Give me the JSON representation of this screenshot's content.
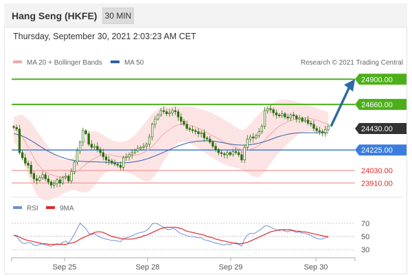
{
  "header": {
    "instrument": "Hang Seng (HKFE)",
    "timeframe": "30 MIN",
    "timestamp": "Thursday, September 30, 2021 2:03:23 AM CET"
  },
  "legend": {
    "ma20_bb": "MA 20 + Bollinger Bands",
    "ma50": "MA 50",
    "copyright": "Research © 2021 Trading Central",
    "rsi": "RSI",
    "rsi_ma": "9MA"
  },
  "colors": {
    "green": "#4caf1a",
    "blue": "#3b7ddd",
    "dark": "#333333",
    "red": "#e0282a",
    "pink": "#f2a7a7",
    "ma50": "#2f5fa8",
    "bb_fill": "#fde4e4",
    "candle": "#2a6e0f",
    "arrow": "#2d6aa3",
    "rsi": "#6c8fd8",
    "rsi_ma": "#e0282a"
  },
  "chart_data": {
    "type": "candlestick",
    "x_tick_labels": [
      "Sep 25",
      "Sep 28",
      "Sep 29",
      "Sep 30"
    ],
    "ylim": [
      23820,
      25000
    ],
    "levels": [
      {
        "value": 24900,
        "label": "24900.00",
        "style": "green-box"
      },
      {
        "value": 24660,
        "label": "24660.00",
        "style": "green-box"
      },
      {
        "value": 24430,
        "label": "24430.00",
        "style": "dark-box"
      },
      {
        "value": 24225,
        "label": "24225.00",
        "style": "blue-box"
      },
      {
        "value": 24030,
        "label": "24030.00",
        "style": "red-text"
      },
      {
        "value": 23910,
        "label": "23910.00",
        "style": "red-text"
      }
    ],
    "close_series": [
      24440,
      24425,
      24200,
      24150,
      24100,
      24080,
      24000,
      23950,
      23935,
      23960,
      23990,
      23950,
      23920,
      23890,
      23905,
      23940,
      23910,
      23960,
      23975,
      23930,
      24020,
      24110,
      24220,
      24300,
      24410,
      24380,
      24280,
      24250,
      24260,
      24230,
      24200,
      24160,
      24130,
      24120,
      24100,
      24090,
      24080,
      24060,
      24150,
      24160,
      24180,
      24200,
      24220,
      24240,
      24250,
      24260,
      24280,
      24350,
      24470,
      24520,
      24560,
      24600,
      24590,
      24570,
      24580,
      24600,
      24590,
      24540,
      24500,
      24470,
      24430,
      24420,
      24410,
      24400,
      24380,
      24390,
      24340,
      24330,
      24300,
      24260,
      24230,
      24200,
      24190,
      24180,
      24200,
      24180,
      24210,
      24200,
      24180,
      24130,
      24250,
      24330,
      24350,
      24340,
      24360,
      24400,
      24450,
      24600,
      24620,
      24610,
      24580,
      24560,
      24550,
      24570,
      24540,
      24530,
      24560,
      24550,
      24520,
      24530,
      24500,
      24510,
      24480,
      24470,
      24430,
      24410,
      24400,
      24390,
      24420,
      24450
    ],
    "ma20": [
      24420,
      24410,
      24390,
      24350,
      24300,
      24250,
      24200,
      24150,
      24100,
      24070,
      24040,
      24020,
      24000,
      23990,
      23980,
      23975,
      23970,
      23970,
      23975,
      23980,
      23990,
      24005,
      24020,
      24040,
      24065,
      24090,
      24110,
      24130,
      24145,
      24160,
      24170,
      24180,
      24180,
      24180,
      24175,
      24170,
      24165,
      24160,
      24160,
      24162,
      24165,
      24170,
      24175,
      24180,
      24190,
      24200,
      24215,
      24235,
      24260,
      24290,
      24320,
      24350,
      24380,
      24400,
      24420,
      24440,
      24455,
      24465,
      24470,
      24470,
      24468,
      24462,
      24455,
      24445,
      24432,
      24420,
      24405,
      24390,
      24375,
      24360,
      24345,
      24330,
      24315,
      24300,
      24288,
      24275,
      24262,
      24250,
      24238,
      24225,
      24222,
      24225,
      24232,
      24240,
      24252,
      24270,
      24292,
      24320,
      24350,
      24378,
      24405,
      24430,
      24450,
      24468,
      24482,
      24494,
      24505,
      24515,
      24522,
      24528,
      24530,
      24530,
      24528,
      24524,
      24518,
      24510,
      24500,
      24490,
      24480,
      24470
    ],
    "ma50": [
      24380,
      24375,
      24368,
      24358,
      24345,
      24330,
      24315,
      24298,
      24280,
      24262,
      24245,
      24228,
      24212,
      24198,
      24185,
      24173,
      24162,
      24152,
      24143,
      24136,
      24130,
      24125,
      24121,
      24118,
      24116,
      24115,
      24114,
      24113,
      24112,
      24111,
      24110,
      24109,
      24108,
      24107,
      24106,
      24105,
      24104,
      24103,
      24103,
      24104,
      24106,
      24109,
      24113,
      24118,
      24124,
      24131,
      24139,
      24148,
      24158,
      24169,
      24180,
      24192,
      24204,
      24216,
      24228,
      24240,
      24252,
      24263,
      24273,
      24282,
      24290,
      24297,
      24302,
      24306,
      24309,
      24311,
      24312,
      24312,
      24311,
      24309,
      24306,
      24302,
      24297,
      24292,
      24287,
      24282,
      24278,
      24275,
      24273,
      24272,
      24272,
      24273,
      24276,
      24280,
      24285,
      24291,
      24298,
      24306,
      24315,
      24325,
      24335,
      24345,
      24354,
      24362,
      24369,
      24375,
      24380,
      24384,
      24387,
      24389,
      24390,
      24390,
      24390,
      24390,
      24390,
      24390,
      24390,
      24390,
      24390,
      24390
    ],
    "bb_width": [
      120,
      140,
      170,
      210,
      240,
      270,
      290,
      300,
      305,
      300,
      290,
      275,
      255,
      235,
      215,
      195,
      180,
      165,
      155,
      150,
      150,
      160,
      185,
      215,
      245,
      270,
      280,
      275,
      260,
      240,
      215,
      190,
      170,
      155,
      145,
      140,
      138,
      140,
      145,
      150,
      160,
      175,
      195,
      220,
      245,
      270,
      290,
      305,
      310,
      305,
      295,
      280,
      260,
      240,
      220,
      200,
      185,
      175,
      170,
      168,
      170,
      175,
      180,
      185,
      190,
      195,
      200,
      205,
      210,
      212,
      214,
      215,
      214,
      212,
      210,
      205,
      200,
      195,
      190,
      190,
      200,
      220,
      245,
      270,
      290,
      300,
      305,
      300,
      290,
      280,
      270,
      260,
      250,
      240,
      225,
      210,
      195,
      180,
      165,
      150,
      140,
      130,
      125,
      120,
      118,
      116,
      115,
      114,
      113,
      112
    ],
    "rsi": {
      "ylim": [
        25,
        75
      ],
      "ticks": [
        70,
        50,
        30
      ],
      "values": [
        52,
        50,
        44,
        40,
        39,
        41,
        40,
        37,
        36,
        38,
        39,
        37,
        36,
        35,
        37,
        39,
        38,
        41,
        43,
        40,
        46,
        53,
        62,
        70,
        66,
        62,
        55,
        53,
        54,
        51,
        49,
        47,
        46,
        45,
        44,
        44,
        43,
        42,
        47,
        48,
        49,
        51,
        53,
        55,
        56,
        57,
        59,
        63,
        69,
        70,
        69,
        66,
        64,
        61,
        60,
        62,
        61,
        57,
        54,
        53,
        51,
        50,
        50,
        49,
        48,
        48,
        45,
        44,
        43,
        41,
        40,
        39,
        38,
        37,
        39,
        37,
        40,
        39,
        38,
        35,
        46,
        52,
        55,
        54,
        56,
        59,
        62,
        66,
        66,
        64,
        62,
        60,
        59,
        60,
        58,
        57,
        59,
        58,
        56,
        57,
        55,
        55,
        53,
        52,
        49,
        47,
        46,
        46,
        48,
        51
      ],
      "ma9": [
        52,
        51,
        49,
        47,
        45,
        44,
        43,
        42,
        41,
        40,
        39,
        39,
        38,
        38,
        38,
        38,
        38,
        38,
        38,
        39,
        40,
        41,
        43,
        46,
        48,
        50,
        52,
        54,
        56,
        57,
        57,
        56,
        54,
        52,
        50,
        49,
        48,
        47,
        46,
        46,
        46,
        46,
        47,
        48,
        49,
        51,
        52,
        54,
        56,
        58,
        60,
        62,
        63,
        64,
        64,
        64,
        64,
        63,
        62,
        60,
        58,
        57,
        56,
        55,
        54,
        53,
        52,
        50,
        49,
        48,
        46,
        45,
        44,
        43,
        42,
        41,
        40,
        40,
        39,
        39,
        40,
        41,
        43,
        45,
        47,
        49,
        51,
        53,
        55,
        57,
        58,
        59,
        60,
        60,
        60,
        60,
        60,
        59,
        58,
        58,
        57,
        57,
        56,
        55,
        54,
        53,
        52,
        51,
        50,
        49
      ]
    }
  }
}
